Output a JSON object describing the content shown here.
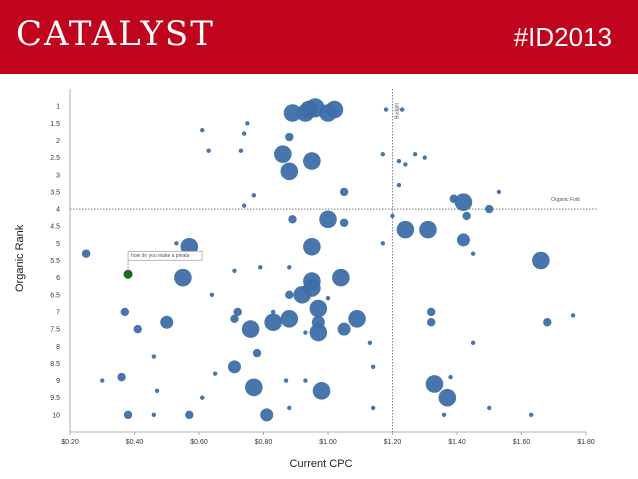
{
  "header": {
    "logo_text": "CATALYST",
    "hashtag": "#ID2013",
    "background_color": "#c1041d"
  },
  "chart_data": {
    "type": "scatter",
    "title": "",
    "xlabel": "Current CPC",
    "ylabel": "Organic Rank",
    "xlim": [
      0.2,
      1.8
    ],
    "ylim": [
      10.5,
      0.5
    ],
    "y_axis_inverted": true,
    "grid": false,
    "x_tick_labels": [
      "$0.20",
      "$0.40",
      "$0.60",
      "$0.80",
      "$1.00",
      "$1.20",
      "$1.40",
      "$1.60",
      "$1.80"
    ],
    "x_tick_values": [
      0.2,
      0.4,
      0.6,
      0.8,
      1.0,
      1.2,
      1.4,
      1.6,
      1.8
    ],
    "y_tick_labels": [
      "1",
      "1.5",
      "2",
      "2.5",
      "3",
      "3.5",
      "4",
      "4.5",
      "5",
      "5.5",
      "6",
      "6.5",
      "7",
      "7.5",
      "8",
      "8.5",
      "9",
      "9.5",
      "10"
    ],
    "y_tick_values": [
      1,
      1.5,
      2,
      2.5,
      3,
      3.5,
      4,
      4.5,
      5,
      5.5,
      6,
      6.5,
      7,
      7.5,
      8,
      8.5,
      9,
      9.5,
      10
    ],
    "reference_lines": [
      {
        "orientation": "vertical",
        "value": 1.2,
        "label": "Budget"
      },
      {
        "orientation": "horizontal",
        "value": 4,
        "label": "Organic Fold"
      }
    ],
    "highlight": {
      "x": 0.38,
      "y": 5.9,
      "label": "how do you make a pinata",
      "color": "#1a6e1a"
    },
    "point_color": "#3d6ea8",
    "points": [
      {
        "x": 0.89,
        "y": 1.2,
        "s": 4
      },
      {
        "x": 0.93,
        "y": 1.2,
        "s": 4
      },
      {
        "x": 0.94,
        "y": 1.1,
        "s": 4
      },
      {
        "x": 0.96,
        "y": 1.05,
        "s": 5
      },
      {
        "x": 1.0,
        "y": 1.2,
        "s": 4
      },
      {
        "x": 1.02,
        "y": 1.1,
        "s": 4
      },
      {
        "x": 0.61,
        "y": 1.7,
        "s": 1
      },
      {
        "x": 0.75,
        "y": 1.5,
        "s": 1
      },
      {
        "x": 0.74,
        "y": 1.8,
        "s": 1
      },
      {
        "x": 0.88,
        "y": 1.9,
        "s": 2
      },
      {
        "x": 0.63,
        "y": 2.3,
        "s": 1
      },
      {
        "x": 0.73,
        "y": 2.3,
        "s": 1
      },
      {
        "x": 0.86,
        "y": 2.4,
        "s": 4
      },
      {
        "x": 0.95,
        "y": 2.6,
        "s": 4
      },
      {
        "x": 0.88,
        "y": 2.9,
        "s": 4
      },
      {
        "x": 0.77,
        "y": 3.6,
        "s": 1
      },
      {
        "x": 1.18,
        "y": 1.1,
        "s": 1
      },
      {
        "x": 1.23,
        "y": 1.1,
        "s": 1
      },
      {
        "x": 1.17,
        "y": 2.4,
        "s": 1
      },
      {
        "x": 1.22,
        "y": 2.6,
        "s": 1
      },
      {
        "x": 1.24,
        "y": 2.7,
        "s": 1
      },
      {
        "x": 1.27,
        "y": 2.4,
        "s": 1
      },
      {
        "x": 1.3,
        "y": 2.5,
        "s": 1
      },
      {
        "x": 1.22,
        "y": 3.3,
        "s": 1
      },
      {
        "x": 1.05,
        "y": 3.5,
        "s": 2
      },
      {
        "x": 0.74,
        "y": 3.9,
        "s": 1
      },
      {
        "x": 1.39,
        "y": 3.7,
        "s": 2
      },
      {
        "x": 1.42,
        "y": 3.8,
        "s": 4
      },
      {
        "x": 1.53,
        "y": 3.5,
        "s": 1
      },
      {
        "x": 1.5,
        "y": 4.0,
        "s": 2
      },
      {
        "x": 1.43,
        "y": 4.2,
        "s": 2
      },
      {
        "x": 1.2,
        "y": 4.2,
        "s": 1
      },
      {
        "x": 0.89,
        "y": 4.3,
        "s": 2
      },
      {
        "x": 1.0,
        "y": 4.3,
        "s": 4
      },
      {
        "x": 1.05,
        "y": 4.4,
        "s": 2
      },
      {
        "x": 1.24,
        "y": 4.6,
        "s": 4
      },
      {
        "x": 1.31,
        "y": 4.6,
        "s": 4
      },
      {
        "x": 1.42,
        "y": 4.9,
        "s": 3
      },
      {
        "x": 1.17,
        "y": 5.0,
        "s": 1
      },
      {
        "x": 0.57,
        "y": 5.1,
        "s": 4
      },
      {
        "x": 0.95,
        "y": 5.1,
        "s": 4
      },
      {
        "x": 0.53,
        "y": 5.0,
        "s": 1
      },
      {
        "x": 0.25,
        "y": 5.3,
        "s": 2
      },
      {
        "x": 1.45,
        "y": 5.3,
        "s": 1
      },
      {
        "x": 1.66,
        "y": 5.5,
        "s": 4
      },
      {
        "x": 0.71,
        "y": 5.8,
        "s": 1
      },
      {
        "x": 0.79,
        "y": 5.7,
        "s": 1
      },
      {
        "x": 0.88,
        "y": 5.7,
        "s": 1
      },
      {
        "x": 0.55,
        "y": 6.0,
        "s": 4
      },
      {
        "x": 0.95,
        "y": 6.1,
        "s": 4
      },
      {
        "x": 0.95,
        "y": 6.3,
        "s": 4
      },
      {
        "x": 1.04,
        "y": 6.0,
        "s": 4
      },
      {
        "x": 0.64,
        "y": 6.5,
        "s": 1
      },
      {
        "x": 0.88,
        "y": 6.5,
        "s": 2
      },
      {
        "x": 0.92,
        "y": 6.5,
        "s": 4
      },
      {
        "x": 1.0,
        "y": 6.6,
        "s": 1
      },
      {
        "x": 0.37,
        "y": 7.0,
        "s": 2
      },
      {
        "x": 0.72,
        "y": 7.0,
        "s": 2
      },
      {
        "x": 0.83,
        "y": 7.0,
        "s": 1
      },
      {
        "x": 0.97,
        "y": 6.9,
        "s": 4
      },
      {
        "x": 0.71,
        "y": 7.2,
        "s": 2
      },
      {
        "x": 0.5,
        "y": 7.3,
        "s": 3
      },
      {
        "x": 0.83,
        "y": 7.3,
        "s": 4
      },
      {
        "x": 0.88,
        "y": 7.2,
        "s": 4
      },
      {
        "x": 0.97,
        "y": 7.3,
        "s": 3
      },
      {
        "x": 1.09,
        "y": 7.2,
        "s": 4
      },
      {
        "x": 0.41,
        "y": 7.5,
        "s": 2
      },
      {
        "x": 0.76,
        "y": 7.5,
        "s": 4
      },
      {
        "x": 0.93,
        "y": 7.6,
        "s": 1
      },
      {
        "x": 0.97,
        "y": 7.6,
        "s": 4
      },
      {
        "x": 1.05,
        "y": 7.5,
        "s": 3
      },
      {
        "x": 1.76,
        "y": 7.1,
        "s": 1
      },
      {
        "x": 1.68,
        "y": 7.3,
        "s": 2
      },
      {
        "x": 1.32,
        "y": 7.0,
        "s": 2
      },
      {
        "x": 1.32,
        "y": 7.3,
        "s": 2
      },
      {
        "x": 1.45,
        "y": 7.9,
        "s": 1
      },
      {
        "x": 1.13,
        "y": 7.9,
        "s": 1
      },
      {
        "x": 0.46,
        "y": 8.3,
        "s": 1
      },
      {
        "x": 0.78,
        "y": 8.2,
        "s": 2
      },
      {
        "x": 0.71,
        "y": 8.6,
        "s": 3
      },
      {
        "x": 1.14,
        "y": 8.6,
        "s": 1
      },
      {
        "x": 0.65,
        "y": 8.8,
        "s": 1
      },
      {
        "x": 0.3,
        "y": 9.0,
        "s": 1
      },
      {
        "x": 0.36,
        "y": 8.9,
        "s": 2
      },
      {
        "x": 0.87,
        "y": 9.0,
        "s": 1
      },
      {
        "x": 0.93,
        "y": 9.0,
        "s": 1
      },
      {
        "x": 0.77,
        "y": 9.2,
        "s": 4
      },
      {
        "x": 0.98,
        "y": 9.3,
        "s": 4
      },
      {
        "x": 1.33,
        "y": 9.1,
        "s": 4
      },
      {
        "x": 1.38,
        "y": 8.9,
        "s": 1
      },
      {
        "x": 0.47,
        "y": 9.3,
        "s": 1
      },
      {
        "x": 0.61,
        "y": 9.5,
        "s": 1
      },
      {
        "x": 1.37,
        "y": 9.5,
        "s": 4
      },
      {
        "x": 0.88,
        "y": 9.8,
        "s": 1
      },
      {
        "x": 1.14,
        "y": 9.8,
        "s": 1
      },
      {
        "x": 1.5,
        "y": 9.8,
        "s": 1
      },
      {
        "x": 0.38,
        "y": 10.0,
        "s": 2
      },
      {
        "x": 0.46,
        "y": 10.0,
        "s": 1
      },
      {
        "x": 0.57,
        "y": 10.0,
        "s": 2
      },
      {
        "x": 0.81,
        "y": 10.0,
        "s": 3
      },
      {
        "x": 1.36,
        "y": 10.0,
        "s": 1
      },
      {
        "x": 1.63,
        "y": 10.0,
        "s": 1
      }
    ]
  }
}
